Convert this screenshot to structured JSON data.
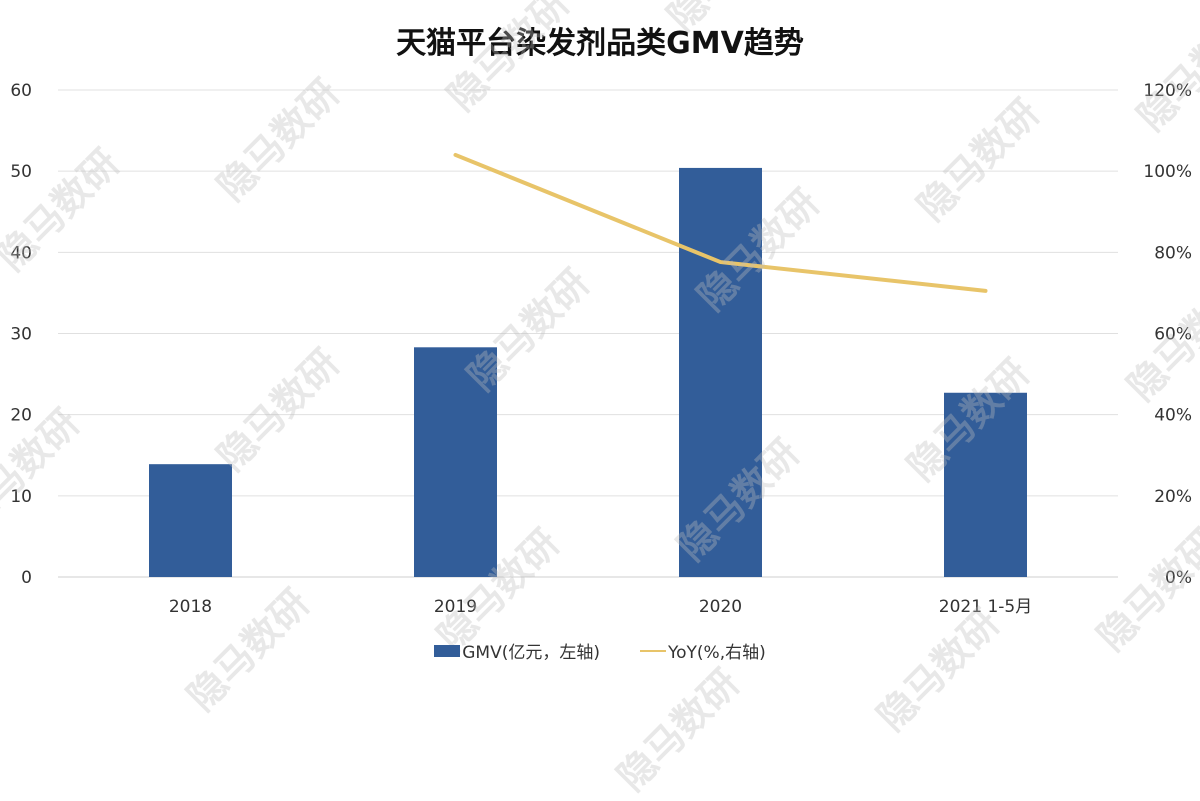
{
  "chart_data": {
    "type": "bar+line",
    "title": "天猫平台染发剂品类GMV趋势",
    "categories": [
      "2018",
      "2019",
      "2020",
      "2021 1-5月"
    ],
    "series": [
      {
        "name": "GMV(亿元，左轴)",
        "type": "bar",
        "axis": "left",
        "values": [
          13.9,
          28.3,
          50.4,
          22.7
        ],
        "color": "#325D99"
      },
      {
        "name": "YoY(%,右轴)",
        "type": "line",
        "axis": "right",
        "values": [
          null,
          104,
          77.6,
          70.5
        ],
        "color": "#E8C469"
      }
    ],
    "left_axis": {
      "min": 0,
      "max": 60,
      "ticks": [
        "0",
        "10",
        "20",
        "30",
        "40",
        "50",
        "60"
      ]
    },
    "right_axis": {
      "min": 0,
      "max": 120,
      "ticks": [
        "0%",
        "20%",
        "40%",
        "60%",
        "80%",
        "100%",
        "120%"
      ]
    },
    "grid": true,
    "legend": "bottom"
  },
  "watermark": "隐马数研"
}
